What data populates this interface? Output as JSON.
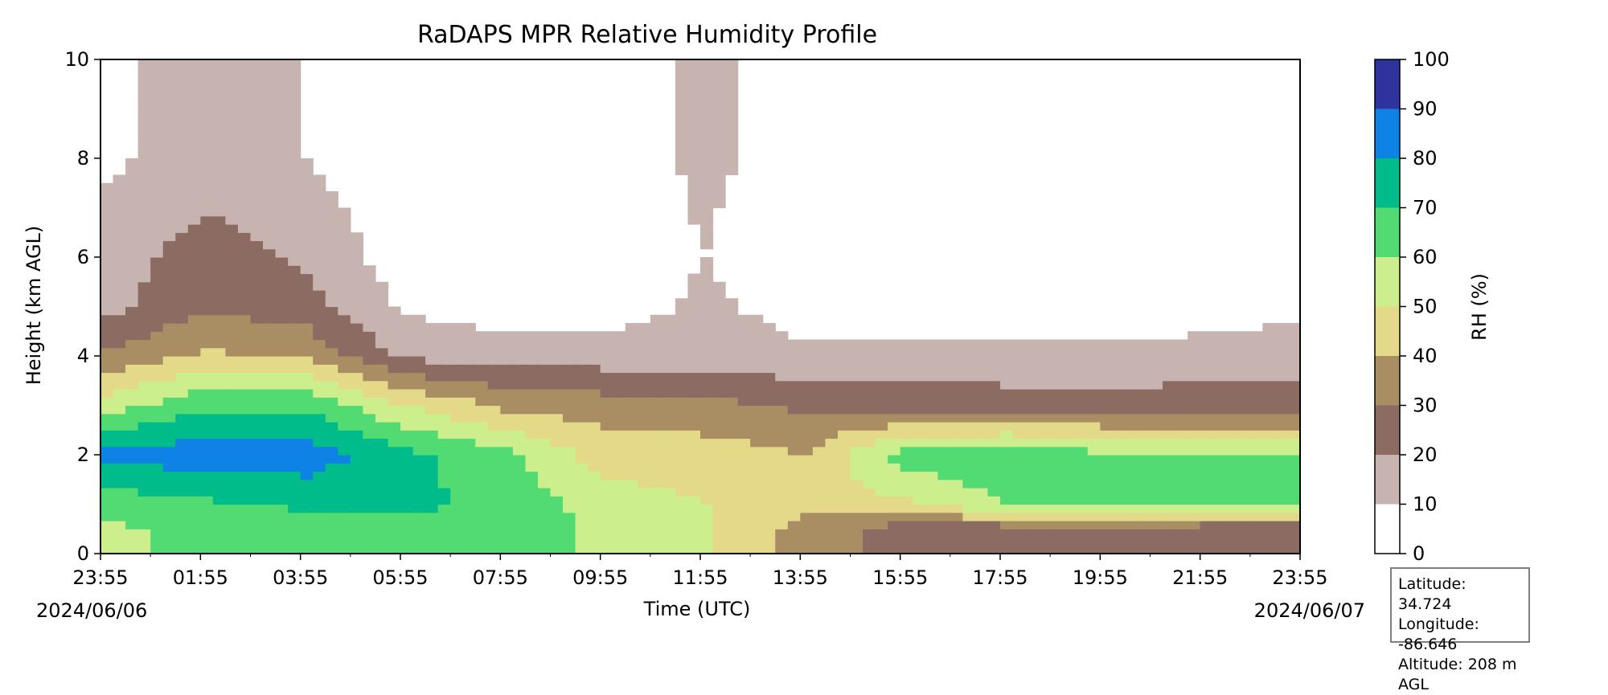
{
  "chart_data": {
    "type": "heatmap",
    "title": "RaDAPS MPR Relative Humidity Profile",
    "xlabel": "Time (UTC)",
    "ylabel": "Height (km AGL)",
    "x_ticks": [
      "23:55",
      "01:55",
      "03:55",
      "05:55",
      "07:55",
      "09:55",
      "11:55",
      "13:55",
      "15:55",
      "17:55",
      "19:55",
      "21:55",
      "23:55"
    ],
    "x_range_hours": [
      0,
      24
    ],
    "start_date": "2024/06/06",
    "end_date": "2024/06/07",
    "ylim": [
      0,
      10
    ],
    "y_ticks": [
      0,
      2,
      4,
      6,
      8,
      10
    ],
    "colorbar": {
      "label": "RH (%)",
      "levels": [
        0,
        10,
        20,
        30,
        40,
        50,
        60,
        70,
        80,
        90,
        100
      ],
      "colors": [
        "#ffffff",
        "#c7b4b0",
        "#8b6b62",
        "#a98d63",
        "#e3d989",
        "#cdee8c",
        "#52db73",
        "#00bb8a",
        "#0f82e5",
        "#2f339d"
      ]
    },
    "rh_profile_percent_by_height_km": {
      "heights_km": [
        0.5,
        1.0,
        2.0,
        3.0,
        4.0,
        5.0,
        6.0,
        8.0
      ],
      "times_utc": [
        "23:55",
        "02:00",
        "04:00",
        "06:00",
        "08:00",
        "10:00",
        "12:00",
        "14:00",
        "16:00",
        "18:00",
        "20:00",
        "22:00",
        "23:55"
      ],
      "values": [
        [
          58,
          62,
          65,
          66,
          66,
          58,
          52,
          36,
          25,
          24,
          26,
          24,
          24
        ],
        [
          64,
          68,
          72,
          72,
          68,
          55,
          50,
          44,
          48,
          60,
          60,
          60,
          60
        ],
        [
          82,
          86,
          86,
          73,
          63,
          45,
          45,
          40,
          65,
          68,
          62,
          60,
          60
        ],
        [
          55,
          68,
          68,
          50,
          38,
          35,
          33,
          28,
          25,
          25,
          24,
          25,
          25
        ],
        [
          32,
          42,
          38,
          18,
          15,
          15,
          15,
          12,
          13,
          13,
          13,
          14,
          15
        ],
        [
          16,
          28,
          25,
          8,
          5,
          5,
          12,
          6,
          3,
          3,
          3,
          5,
          8
        ],
        [
          14,
          25,
          18,
          5,
          3,
          3,
          10,
          3,
          2,
          2,
          2,
          3,
          8
        ],
        [
          8,
          14,
          10,
          3,
          2,
          5,
          12,
          6,
          2,
          2,
          2,
          5,
          8
        ]
      ]
    }
  },
  "location": {
    "latitude": "Latitude: 34.724",
    "longitude": "Longitude: -86.646",
    "altitude": "Altitude: 208 m AGL"
  }
}
